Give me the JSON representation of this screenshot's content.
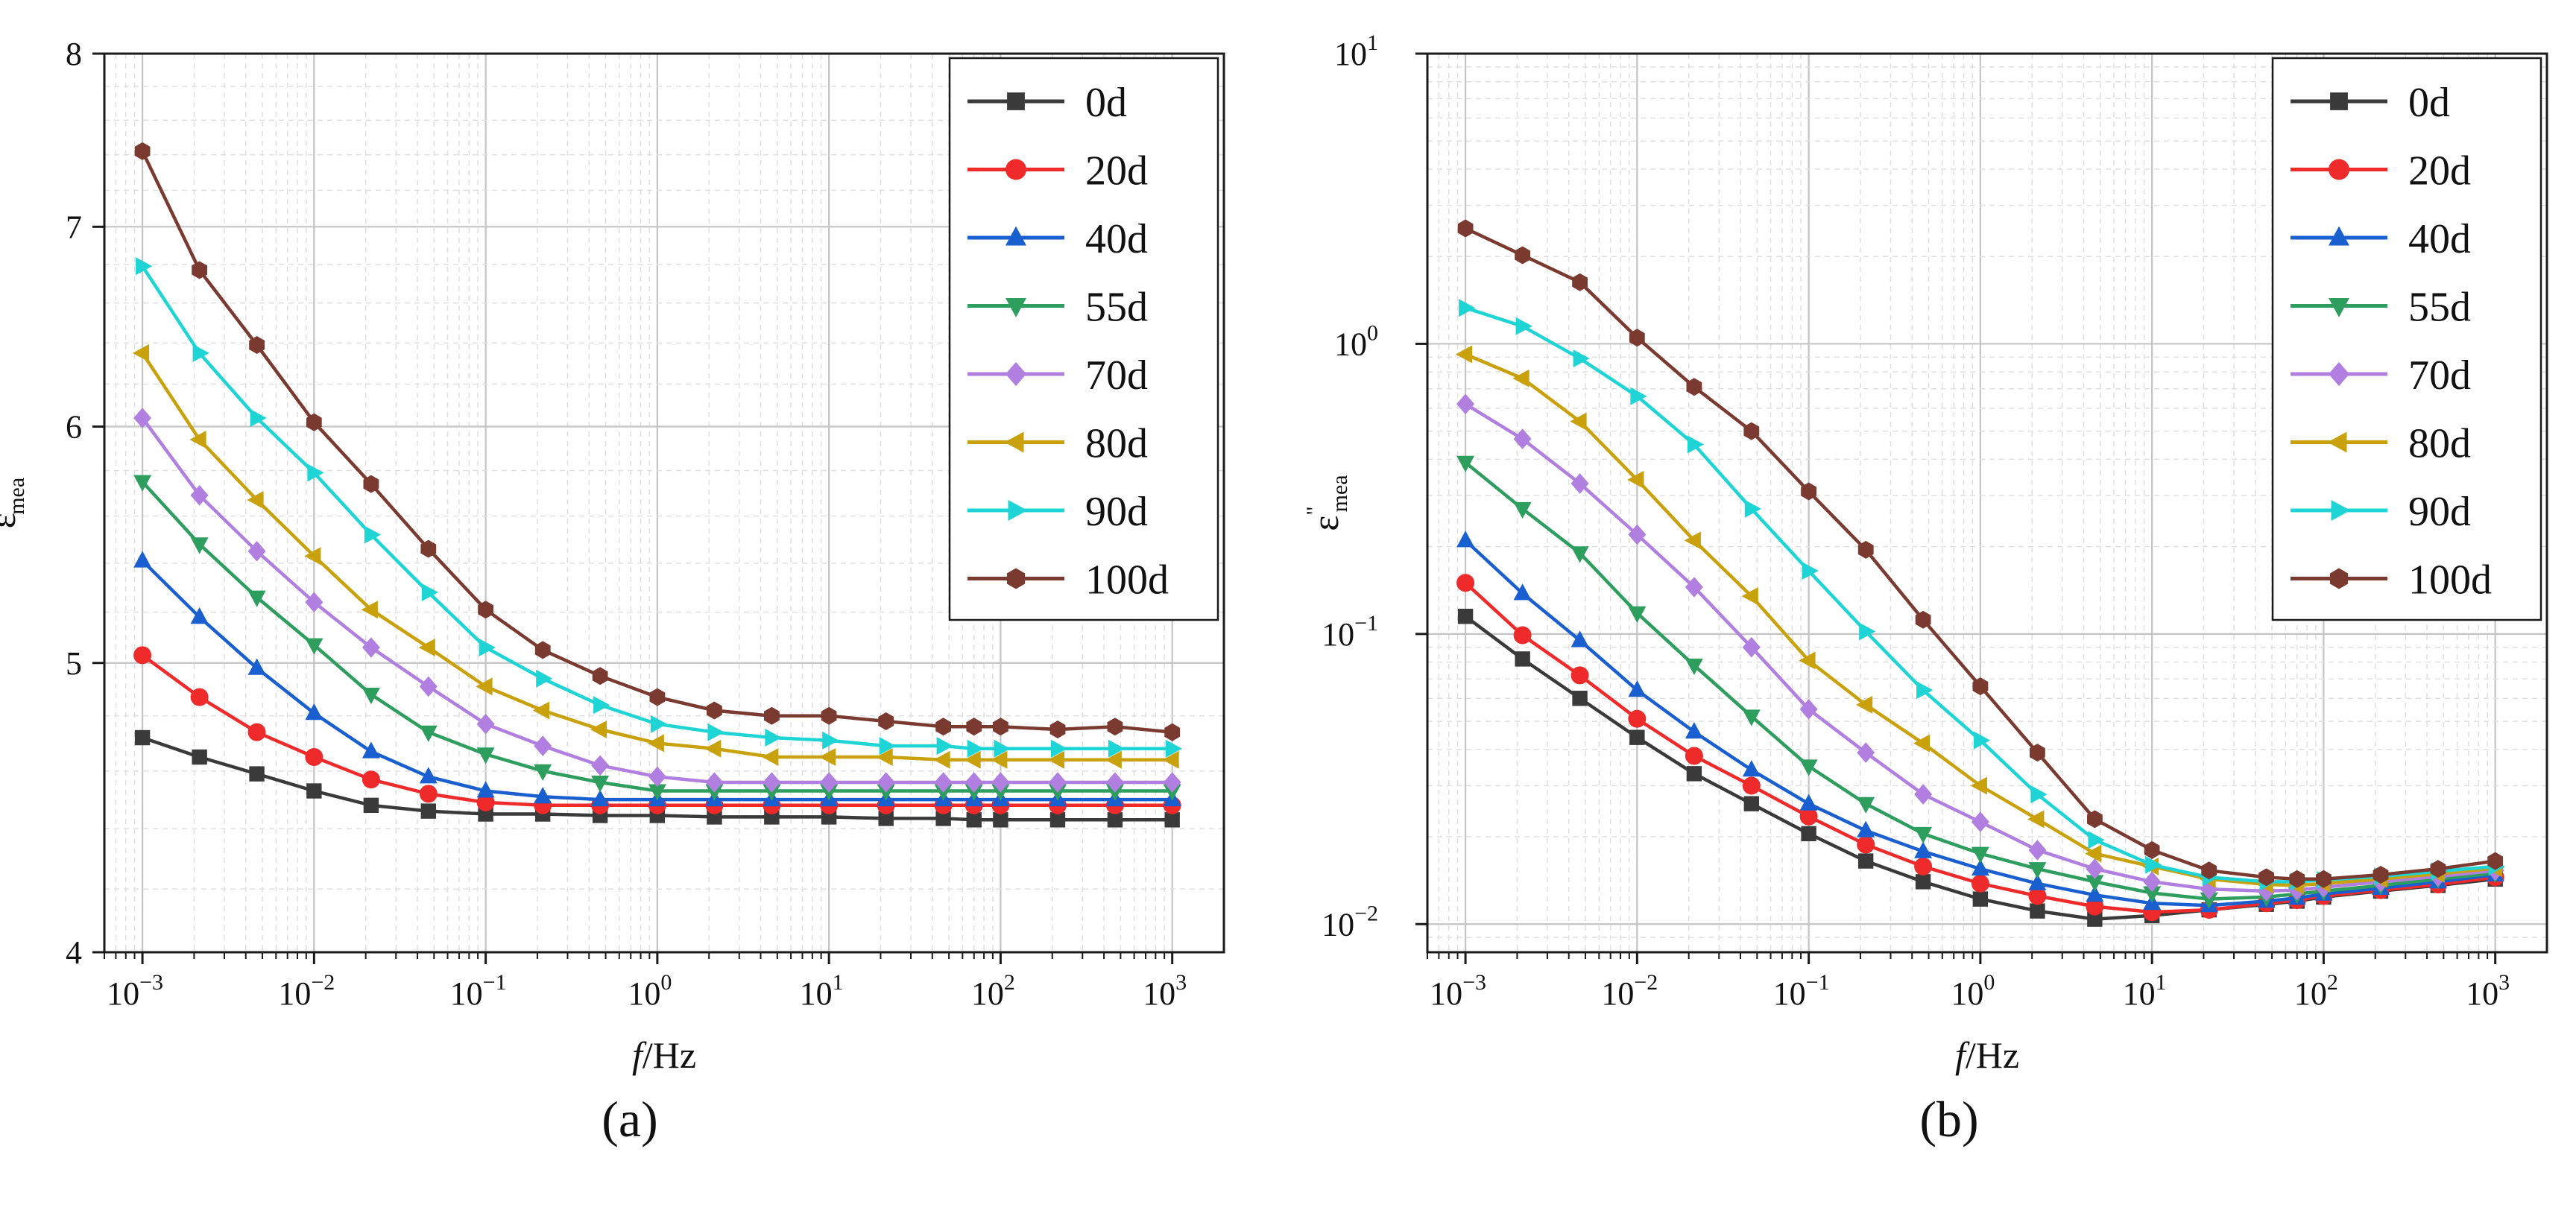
{
  "chart_data": [
    {
      "panel": "(a)",
      "type": "line",
      "xscale": "log",
      "yscale": "log",
      "xlabel": "f/Hz",
      "ylabel": "ε'mea",
      "xlim": [
        0.0006,
        2000
      ],
      "ylim": [
        4,
        8
      ],
      "yticks": [
        4,
        5,
        6,
        7,
        8
      ],
      "xtick_exponents": [
        -3,
        -2,
        -1,
        0,
        1,
        2,
        3
      ],
      "grid": true,
      "legend": "top-right",
      "x": [
        0.001,
        0.00215,
        0.00464,
        0.01,
        0.0215,
        0.0464,
        0.1,
        0.215,
        0.464,
        1,
        2.15,
        4.64,
        10,
        21.5,
        46.4,
        70,
        100,
        215,
        464,
        1000
      ],
      "series": [
        {
          "name": "0d",
          "values": [
            4.72,
            4.65,
            4.59,
            4.53,
            4.48,
            4.46,
            4.45,
            4.45,
            4.445,
            4.445,
            4.44,
            4.44,
            4.44,
            4.435,
            4.435,
            4.43,
            4.43,
            4.43,
            4.43,
            4.43
          ]
        },
        {
          "name": "20d",
          "values": [
            5.03,
            4.87,
            4.74,
            4.65,
            4.57,
            4.52,
            4.49,
            4.48,
            4.48,
            4.48,
            4.48,
            4.48,
            4.48,
            4.48,
            4.48,
            4.48,
            4.48,
            4.48,
            4.48,
            4.48
          ]
        },
        {
          "name": "40d",
          "values": [
            5.41,
            5.18,
            4.98,
            4.81,
            4.67,
            4.58,
            4.53,
            4.51,
            4.5,
            4.5,
            4.5,
            4.5,
            4.5,
            4.5,
            4.5,
            4.5,
            4.5,
            4.5,
            4.5,
            4.5
          ]
        },
        {
          "name": "55d",
          "values": [
            5.75,
            5.48,
            5.26,
            5.07,
            4.88,
            4.74,
            4.66,
            4.6,
            4.56,
            4.53,
            4.53,
            4.53,
            4.53,
            4.53,
            4.53,
            4.53,
            4.53,
            4.53,
            4.53,
            4.53
          ]
        },
        {
          "name": "70d",
          "values": [
            6.04,
            5.69,
            5.45,
            5.24,
            5.06,
            4.91,
            4.77,
            4.69,
            4.62,
            4.58,
            4.56,
            4.56,
            4.56,
            4.56,
            4.56,
            4.56,
            4.56,
            4.56,
            4.56,
            4.56
          ]
        },
        {
          "name": "80d",
          "values": [
            6.35,
            5.94,
            5.67,
            5.43,
            5.21,
            5.06,
            4.91,
            4.82,
            4.75,
            4.7,
            4.68,
            4.65,
            4.65,
            4.65,
            4.64,
            4.64,
            4.64,
            4.64,
            4.64,
            4.64
          ]
        },
        {
          "name": "90d",
          "values": [
            6.79,
            6.35,
            6.04,
            5.79,
            5.52,
            5.28,
            5.06,
            4.94,
            4.84,
            4.77,
            4.74,
            4.72,
            4.71,
            4.69,
            4.69,
            4.68,
            4.68,
            4.68,
            4.68,
            4.68
          ]
        },
        {
          "name": "100d",
          "values": [
            7.42,
            6.77,
            6.39,
            6.02,
            5.74,
            5.46,
            5.21,
            5.05,
            4.95,
            4.87,
            4.82,
            4.8,
            4.8,
            4.78,
            4.76,
            4.76,
            4.76,
            4.75,
            4.76,
            4.74
          ]
        }
      ]
    },
    {
      "panel": "(b)",
      "type": "line",
      "xscale": "log",
      "yscale": "log",
      "xlabel": "f/Hz",
      "ylabel": "ε\"mea",
      "xlim": [
        0.0006,
        2000
      ],
      "ylim": [
        0.008,
        10
      ],
      "ytick_exponents": [
        -2,
        -1,
        0,
        1
      ],
      "xtick_exponents": [
        -3,
        -2,
        -1,
        0,
        1,
        2,
        3
      ],
      "grid": true,
      "legend": "top-right",
      "x": [
        0.001,
        0.00215,
        0.00464,
        0.01,
        0.0215,
        0.0464,
        0.1,
        0.215,
        0.464,
        1,
        2.15,
        4.64,
        10,
        21.5,
        46.4,
        70,
        100,
        215,
        464,
        1000
      ],
      "series": [
        {
          "name": "0d",
          "values": [
            0.115,
            0.082,
            0.06,
            0.044,
            0.033,
            0.026,
            0.0205,
            0.0165,
            0.014,
            0.0122,
            0.0111,
            0.0104,
            0.0107,
            0.0112,
            0.0117,
            0.012,
            0.0124,
            0.013,
            0.0136,
            0.0143
          ]
        },
        {
          "name": "20d",
          "values": [
            0.15,
            0.099,
            0.072,
            0.051,
            0.038,
            0.03,
            0.0235,
            0.0188,
            0.0158,
            0.0138,
            0.0125,
            0.0115,
            0.011,
            0.0112,
            0.0118,
            0.0121,
            0.0125,
            0.0131,
            0.0137,
            0.0145
          ]
        },
        {
          "name": "40d",
          "values": [
            0.21,
            0.138,
            0.095,
            0.064,
            0.046,
            0.034,
            0.026,
            0.021,
            0.0178,
            0.0155,
            0.0138,
            0.0126,
            0.0118,
            0.0116,
            0.012,
            0.0123,
            0.0127,
            0.0133,
            0.014,
            0.0148
          ]
        },
        {
          "name": "55d",
          "values": [
            0.39,
            0.27,
            0.19,
            0.118,
            0.078,
            0.052,
            0.035,
            0.026,
            0.0205,
            0.0175,
            0.0155,
            0.014,
            0.0128,
            0.0122,
            0.0124,
            0.0127,
            0.013,
            0.0136,
            0.0143,
            0.015
          ]
        },
        {
          "name": "70d",
          "values": [
            0.62,
            0.47,
            0.33,
            0.22,
            0.145,
            0.09,
            0.055,
            0.039,
            0.028,
            0.0225,
            0.018,
            0.0155,
            0.014,
            0.0132,
            0.013,
            0.0131,
            0.0134,
            0.014,
            0.0146,
            0.0153
          ]
        },
        {
          "name": "80d",
          "values": [
            0.92,
            0.76,
            0.54,
            0.34,
            0.21,
            0.135,
            0.081,
            0.057,
            0.042,
            0.03,
            0.023,
            0.0175,
            0.0158,
            0.0143,
            0.0137,
            0.0136,
            0.0138,
            0.0143,
            0.0149,
            0.0156
          ]
        },
        {
          "name": "90d",
          "values": [
            1.33,
            1.15,
            0.89,
            0.66,
            0.45,
            0.27,
            0.165,
            0.102,
            0.064,
            0.043,
            0.028,
            0.0195,
            0.016,
            0.0145,
            0.014,
            0.014,
            0.0142,
            0.0146,
            0.0152,
            0.0158
          ]
        },
        {
          "name": "100d",
          "values": [
            2.5,
            2.02,
            1.63,
            1.05,
            0.71,
            0.5,
            0.31,
            0.195,
            0.112,
            0.066,
            0.039,
            0.023,
            0.018,
            0.0153,
            0.0145,
            0.0143,
            0.0143,
            0.0148,
            0.0155,
            0.0165
          ]
        }
      ]
    }
  ],
  "legend_colors": [
    "#3a3a3a",
    "#ee2a2a",
    "#1a5fd0",
    "#2e9e5e",
    "#b07fe0",
    "#c9a10c",
    "#1ed4d4",
    "#7a3a30"
  ],
  "legend_markers": [
    "square",
    "circle",
    "triangle-up",
    "triangle-down",
    "diamond",
    "triangle-left",
    "triangle-right",
    "hexagon"
  ],
  "captions": [
    "(a)",
    "(b)"
  ]
}
